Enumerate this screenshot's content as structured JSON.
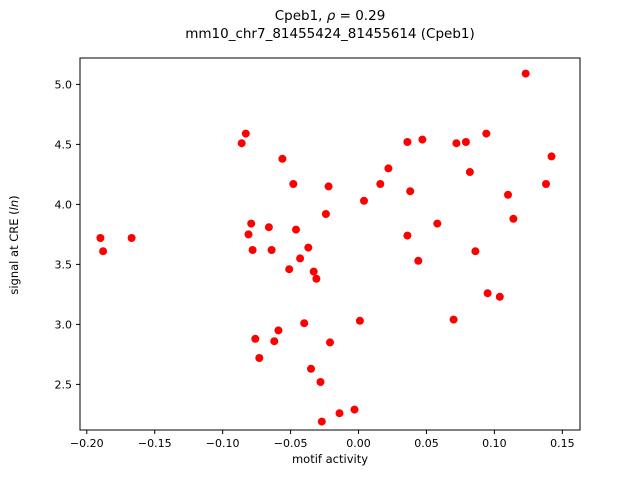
{
  "chart_data": {
    "type": "scatter",
    "title": {
      "prefix": "Cpeb1, ",
      "italic": "ρ",
      "suffix": " = 0.29"
    },
    "subtitle": "mm10_chr7_81455424_81455614 (Cpeb1)",
    "xlabel": "motif activity",
    "ylabel": {
      "prefix": "signal at CRE (",
      "italic": "ln",
      "suffix": ")"
    },
    "xlim": [
      -0.205,
      0.163
    ],
    "ylim": [
      2.12,
      5.22
    ],
    "xticks": [
      -0.2,
      -0.15,
      -0.1,
      -0.05,
      0.0,
      0.05,
      0.1,
      0.15
    ],
    "xtick_labels": [
      "−0.20",
      "−0.15",
      "−0.10",
      "−0.05",
      "0.00",
      "0.05",
      "0.10",
      "0.15"
    ],
    "yticks": [
      2.5,
      3.0,
      3.5,
      4.0,
      4.5,
      5.0
    ],
    "ytick_labels": [
      "2.5",
      "3.0",
      "3.5",
      "4.0",
      "4.5",
      "5.0"
    ],
    "marker_color": "#ff0000",
    "marker_radius": 4,
    "grid": false,
    "legend": null,
    "points": [
      [
        -0.19,
        3.72
      ],
      [
        -0.188,
        3.61
      ],
      [
        -0.167,
        3.72
      ],
      [
        -0.086,
        4.51
      ],
      [
        -0.083,
        4.59
      ],
      [
        -0.081,
        3.75
      ],
      [
        -0.079,
        3.84
      ],
      [
        -0.078,
        3.62
      ],
      [
        -0.076,
        2.88
      ],
      [
        -0.073,
        2.72
      ],
      [
        -0.066,
        3.81
      ],
      [
        -0.064,
        3.62
      ],
      [
        -0.062,
        2.86
      ],
      [
        -0.059,
        2.95
      ],
      [
        -0.056,
        4.38
      ],
      [
        -0.051,
        3.46
      ],
      [
        -0.048,
        4.17
      ],
      [
        -0.046,
        3.79
      ],
      [
        -0.043,
        3.55
      ],
      [
        -0.04,
        3.01
      ],
      [
        -0.037,
        3.64
      ],
      [
        -0.035,
        2.63
      ],
      [
        -0.033,
        3.44
      ],
      [
        -0.031,
        3.38
      ],
      [
        -0.028,
        2.52
      ],
      [
        -0.027,
        2.19
      ],
      [
        -0.024,
        3.92
      ],
      [
        -0.022,
        4.15
      ],
      [
        -0.021,
        2.85
      ],
      [
        -0.014,
        2.26
      ],
      [
        -0.003,
        2.29
      ],
      [
        0.001,
        3.03
      ],
      [
        0.004,
        4.03
      ],
      [
        0.016,
        4.17
      ],
      [
        0.022,
        4.3
      ],
      [
        0.036,
        4.52
      ],
      [
        0.047,
        4.54
      ],
      [
        0.038,
        4.11
      ],
      [
        0.036,
        3.74
      ],
      [
        0.044,
        3.53
      ],
      [
        0.058,
        3.84
      ],
      [
        0.07,
        3.04
      ],
      [
        0.072,
        4.51
      ],
      [
        0.079,
        4.52
      ],
      [
        0.082,
        4.27
      ],
      [
        0.086,
        3.61
      ],
      [
        0.094,
        4.59
      ],
      [
        0.095,
        3.26
      ],
      [
        0.104,
        3.23
      ],
      [
        0.11,
        4.08
      ],
      [
        0.114,
        3.88
      ],
      [
        0.123,
        5.09
      ],
      [
        0.138,
        4.17
      ],
      [
        0.142,
        4.4
      ]
    ]
  }
}
